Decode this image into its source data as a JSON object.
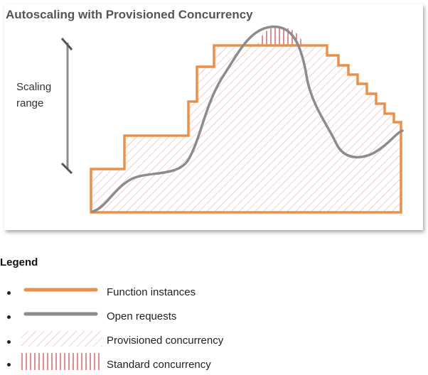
{
  "diagram": {
    "title": "Autoscaling with Provisioned Concurrency",
    "scaling_range_label": "Scaling range"
  },
  "legend": {
    "heading": "Legend",
    "items": [
      {
        "label": "Function instances",
        "swatch": "orange-line"
      },
      {
        "label": "Open requests",
        "swatch": "gray-line"
      },
      {
        "label": "Provisioned concurrency",
        "swatch": "diagonal-hatch"
      },
      {
        "label": "Standard concurrency",
        "swatch": "vertical-hatch"
      }
    ]
  },
  "colors": {
    "function_instances": "#e8914a",
    "open_requests": "#8c8c8c",
    "provisioned_hatch": "#e8a0a0",
    "standard_hatch": "#cc4040"
  }
}
